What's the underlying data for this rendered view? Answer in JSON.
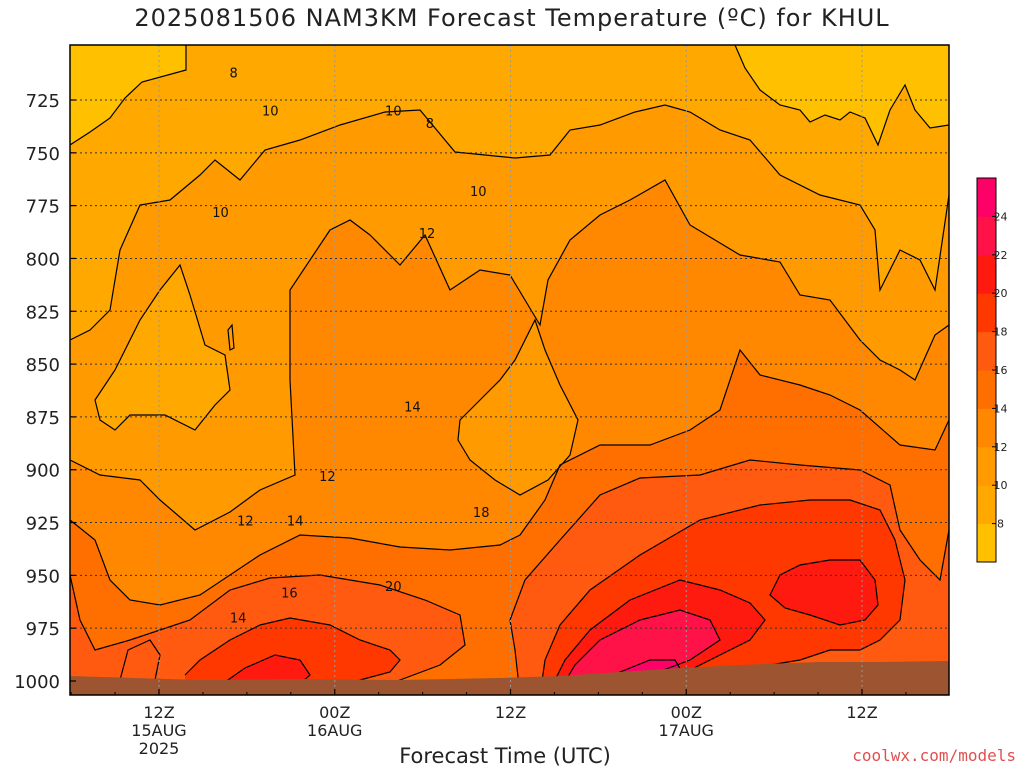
{
  "chart_data": {
    "type": "heatmap",
    "title": "2025081506 NAM3KM Forecast Temperature (ºC) for KHUL",
    "xlabel": "Forecast Time (UTC)",
    "ylabel": "",
    "credit": "coolwx.com/models",
    "y_ticks": [
      725,
      750,
      775,
      800,
      825,
      850,
      875,
      900,
      925,
      950,
      975,
      1000
    ],
    "ylim": [
      1000,
      700
    ],
    "x_ticks": [
      {
        "l1": "12Z",
        "l2": "15AUG",
        "l3": "2025"
      },
      {
        "l1": "00Z",
        "l2": "16AUG",
        "l3": ""
      },
      {
        "l1": "12Z",
        "l2": "",
        "l3": ""
      },
      {
        "l1": "00Z",
        "l2": "17AUG",
        "l3": ""
      },
      {
        "l1": "12Z",
        "l2": "",
        "l3": ""
      }
    ],
    "colorbar": {
      "ticks": [
        8,
        10,
        12,
        14,
        16,
        18,
        20,
        22,
        24
      ],
      "levels": [
        6,
        8,
        10,
        12,
        14,
        16,
        18,
        20,
        22,
        24,
        26
      ],
      "colors": [
        "#ffc000",
        "#ffa800",
        "#ff9a00",
        "#ff8800",
        "#ff6f00",
        "#ff5a10",
        "#ff3800",
        "#ff1a10",
        "#ff1248",
        "#ff0068"
      ]
    },
    "contour_labels": [
      {
        "t": 17.1,
        "p": 712,
        "text": "8"
      },
      {
        "t": 19.6,
        "p": 730,
        "text": "10"
      },
      {
        "t": 28.0,
        "p": 730,
        "text": "10"
      },
      {
        "t": 30.5,
        "p": 736,
        "text": "8"
      },
      {
        "t": 16.2,
        "p": 778,
        "text": "10"
      },
      {
        "t": 33.8,
        "p": 768,
        "text": "10"
      },
      {
        "t": 30.3,
        "p": 788,
        "text": "12"
      },
      {
        "t": 29.3,
        "p": 870,
        "text": "14"
      },
      {
        "t": 23.5,
        "p": 903,
        "text": "12"
      },
      {
        "t": 17.9,
        "p": 924,
        "text": "12"
      },
      {
        "t": 21.3,
        "p": 924,
        "text": "14"
      },
      {
        "t": 34.0,
        "p": 920,
        "text": "18"
      },
      {
        "t": 20.9,
        "p": 958,
        "text": "16"
      },
      {
        "t": 17.4,
        "p": 970,
        "text": "14"
      },
      {
        "t": 28.0,
        "p": 955,
        "text": "20"
      }
    ],
    "grid": true
  }
}
